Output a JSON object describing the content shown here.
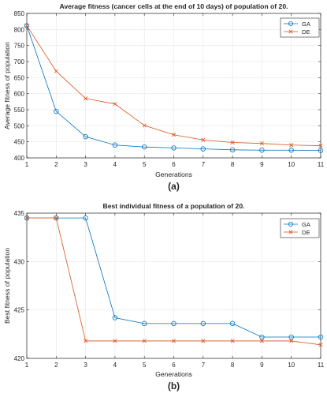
{
  "chart_data": [
    {
      "type": "line",
      "title": "Average fitness (cancer cells at the end of 10 days) of population of 20.",
      "panel_label": "(a)",
      "xlabel": "Generations",
      "ylabel": "Average fitness of population",
      "xlim": [
        1,
        11
      ],
      "ylim": [
        400,
        850
      ],
      "xticks": [
        "1",
        "2",
        "3",
        "4",
        "5",
        "6",
        "7",
        "8",
        "9",
        "10",
        "11"
      ],
      "yticks": [
        "400",
        "450",
        "500",
        "550",
        "600",
        "650",
        "700",
        "750",
        "800",
        "850"
      ],
      "x": [
        1,
        2,
        3,
        4,
        5,
        6,
        7,
        8,
        9,
        10,
        11
      ],
      "grid": true,
      "legend_position": "top-right",
      "series": [
        {
          "name": "GA",
          "color": "#0072BD",
          "marker": "circle",
          "values": [
            812,
            545,
            466,
            440,
            434,
            431,
            428,
            425,
            424,
            424,
            423
          ]
        },
        {
          "name": "DE",
          "color": "#D95319",
          "marker": "x",
          "values": [
            812,
            670,
            585,
            568,
            501,
            472,
            456,
            448,
            445,
            440,
            438
          ]
        }
      ]
    },
    {
      "type": "line",
      "title": "Best individual fitness of a population of 20.",
      "panel_label": "(b)",
      "xlabel": "Generations",
      "ylabel": "Best fitness of population",
      "xlim": [
        1,
        11
      ],
      "ylim": [
        420,
        435
      ],
      "xticks": [
        "1",
        "2",
        "3",
        "4",
        "5",
        "6",
        "7",
        "8",
        "9",
        "10",
        "11"
      ],
      "yticks": [
        "420",
        "425",
        "430",
        "435"
      ],
      "x": [
        1,
        2,
        3,
        4,
        5,
        6,
        7,
        8,
        9,
        10,
        11
      ],
      "grid": true,
      "legend_position": "top-right",
      "series": [
        {
          "name": "GA",
          "color": "#0072BD",
          "marker": "circle",
          "values": [
            434.5,
            434.5,
            434.5,
            424.2,
            423.6,
            423.6,
            423.6,
            423.6,
            422.2,
            422.2,
            422.2
          ]
        },
        {
          "name": "DE",
          "color": "#D95319",
          "marker": "x",
          "values": [
            434.5,
            434.5,
            421.8,
            421.8,
            421.8,
            421.8,
            421.8,
            421.8,
            421.8,
            421.8,
            421.4
          ]
        }
      ]
    }
  ]
}
